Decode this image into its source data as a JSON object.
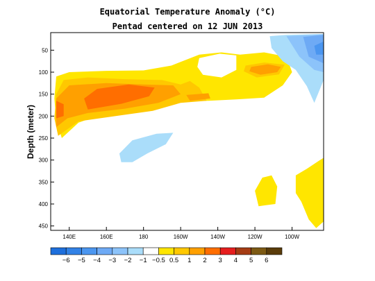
{
  "chart_data": {
    "type": "heatmap",
    "title": "Equatorial Temperature Anomaly (°C)",
    "subtitle": "Pentad centered on 12 JUN 2013",
    "ylabel": "Depth (meter)",
    "xlabel": "",
    "x_ticks": [
      "140E",
      "160E",
      "180",
      "160W",
      "140W",
      "120W",
      "100W"
    ],
    "x_tick_values": [
      140,
      160,
      180,
      200,
      220,
      240,
      260
    ],
    "xlim": [
      130,
      277
    ],
    "y_ticks": [
      "50",
      "100",
      "150",
      "200",
      "250",
      "300",
      "350",
      "400",
      "450"
    ],
    "y_tick_values": [
      50,
      100,
      150,
      200,
      250,
      300,
      350,
      400,
      450
    ],
    "ylim": [
      10,
      460
    ],
    "y_inverted": true,
    "grid": false,
    "colorbar": {
      "labels": [
        "−6",
        "−5",
        "−4",
        "−3",
        "−2",
        "−1",
        "−0.5",
        "0.5",
        "1",
        "2",
        "3",
        "4",
        "5",
        "6"
      ],
      "colors": [
        "#1e6fdc",
        "#3282e6",
        "#4b96f0",
        "#6eaaf5",
        "#8cc3fa",
        "#aaddfa",
        "#ffffff",
        "#ffe600",
        "#ffc800",
        "#ffa000",
        "#ff6e00",
        "#e61e1e",
        "#a53c14",
        "#7d5a14",
        "#5a3c0a"
      ]
    },
    "anomaly_regions": [
      {
        "level": 0.5,
        "color": "#ffe600",
        "points": [
          [
            136,
            250
          ],
          [
            133,
            210
          ],
          [
            132,
            160
          ],
          [
            133,
            110
          ],
          [
            140,
            100
          ],
          [
            160,
            97
          ],
          [
            180,
            96
          ],
          [
            195,
            85
          ],
          [
            210,
            60
          ],
          [
            222,
            55
          ],
          [
            232,
            60
          ],
          [
            245,
            55
          ],
          [
            257,
            65
          ],
          [
            260,
            100
          ],
          [
            255,
            130
          ],
          [
            245,
            158
          ],
          [
            230,
            162
          ],
          [
            215,
            165
          ],
          [
            195,
            165
          ],
          [
            175,
            185
          ],
          [
            155,
            200
          ],
          [
            145,
            215
          ]
        ]
      },
      {
        "level": 0.5,
        "color": "#ffe600",
        "points": [
          [
            242,
            405
          ],
          [
            240,
            370
          ],
          [
            244,
            340
          ],
          [
            249,
            335
          ],
          [
            252,
            360
          ],
          [
            251,
            400
          ]
        ]
      },
      {
        "level": 0.5,
        "color": "#ffe600",
        "points": [
          [
            262,
            375
          ],
          [
            262,
            335
          ],
          [
            268,
            320
          ],
          [
            275,
            300
          ],
          [
            277,
            295
          ],
          [
            277,
            440
          ],
          [
            273,
            455
          ],
          [
            269,
            435
          ],
          [
            265,
            395
          ]
        ]
      },
      {
        "level": 1,
        "color": "#ffc800",
        "points": [
          [
            134,
            245
          ],
          [
            132,
            205
          ],
          [
            133,
            150
          ],
          [
            137,
            118
          ],
          [
            150,
            112
          ],
          [
            170,
            116
          ],
          [
            190,
            118
          ],
          [
            200,
            128
          ],
          [
            205,
            120
          ],
          [
            210,
            135
          ],
          [
            214,
            165
          ],
          [
            200,
            170
          ],
          [
            185,
            188
          ],
          [
            165,
            200
          ],
          [
            145,
            212
          ]
        ]
      },
      {
        "level": 1,
        "color": "#ffc800",
        "points": [
          [
            235,
            85
          ],
          [
            245,
            78
          ],
          [
            256,
            83
          ],
          [
            253,
            105
          ],
          [
            241,
            112
          ],
          [
            234,
            98
          ]
        ]
      },
      {
        "level": 2,
        "color": "#ffa000",
        "points": [
          [
            133,
            225
          ],
          [
            133,
            160
          ],
          [
            140,
            130
          ],
          [
            160,
            125
          ],
          [
            180,
            128
          ],
          [
            196,
            130
          ],
          [
            200,
            150
          ],
          [
            188,
            170
          ],
          [
            170,
            183
          ],
          [
            150,
            193
          ],
          [
            139,
            205
          ]
        ]
      },
      {
        "level": 2,
        "color": "#ffa000",
        "points": [
          [
            238,
            88
          ],
          [
            247,
            82
          ],
          [
            254,
            88
          ],
          [
            252,
            100
          ],
          [
            243,
            106
          ],
          [
            237,
            98
          ]
        ]
      },
      {
        "level": 2,
        "color": "#ffa000",
        "points": [
          [
            203,
            152
          ],
          [
            215,
            148
          ],
          [
            216,
            160
          ],
          [
            205,
            165
          ]
        ]
      },
      {
        "level": 3,
        "color": "#ff6e00",
        "points": [
          [
            150,
            185
          ],
          [
            148,
            160
          ],
          [
            155,
            138
          ],
          [
            172,
            128
          ],
          [
            186,
            135
          ],
          [
            183,
            155
          ],
          [
            168,
            172
          ]
        ]
      },
      {
        "level": 3,
        "color": "#ff6e00",
        "points": [
          [
            133,
            205
          ],
          [
            133,
            165
          ],
          [
            137,
            173
          ],
          [
            137,
            200
          ]
        ]
      },
      {
        "level": -0.5,
        "color": "#ffffff",
        "points": [
          [
            210,
            68
          ],
          [
            221,
            58
          ],
          [
            230,
            62
          ],
          [
            230,
            95
          ],
          [
            222,
            112
          ],
          [
            212,
            106
          ],
          [
            209,
            88
          ]
        ]
      },
      {
        "level": -1,
        "color": "#aaddfa",
        "points": [
          [
            168,
            305
          ],
          [
            167,
            285
          ],
          [
            174,
            255
          ],
          [
            187,
            240
          ],
          [
            196,
            238
          ],
          [
            192,
            264
          ],
          [
            182,
            285
          ],
          [
            174,
            305
          ]
        ]
      },
      {
        "level": -1,
        "color": "#aaddfa",
        "points": [
          [
            248,
            18
          ],
          [
            257,
            15
          ],
          [
            277,
            13
          ],
          [
            277,
            118
          ],
          [
            272,
            170
          ],
          [
            268,
            132
          ],
          [
            262,
            95
          ],
          [
            255,
            75
          ],
          [
            249,
            45
          ]
        ]
      },
      {
        "level": -2,
        "color": "#8cc3fa",
        "points": [
          [
            257,
            18
          ],
          [
            277,
            14
          ],
          [
            277,
            100
          ],
          [
            272,
            95
          ],
          [
            264,
            65
          ]
        ]
      },
      {
        "level": -3,
        "color": "#6eaaf5",
        "points": [
          [
            266,
            20
          ],
          [
            277,
            15
          ],
          [
            277,
            80
          ],
          [
            269,
            65
          ]
        ]
      },
      {
        "level": -4,
        "color": "#4b96f0",
        "points": [
          [
            272,
            40
          ],
          [
            277,
            30
          ],
          [
            277,
            60
          ],
          [
            273,
            60
          ]
        ]
      }
    ]
  }
}
